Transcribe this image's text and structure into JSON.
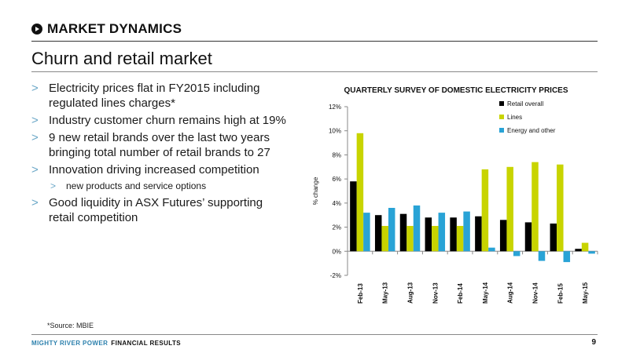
{
  "header": {
    "section": "MARKET DYNAMICS",
    "icon": "play-circle-icon"
  },
  "page_title": "Churn and retail market",
  "bullets": [
    {
      "level": 1,
      "text": "Electricity prices flat in FY2015 including regulated lines charges*"
    },
    {
      "level": 1,
      "text": "Industry customer churn remains high at 19%"
    },
    {
      "level": 1,
      "text": "9 new retail brands over the last two years bringing total number of retail brands to 27"
    },
    {
      "level": 1,
      "text": "Innovation driving increased competition"
    },
    {
      "level": 2,
      "text": "new products and service options"
    },
    {
      "level": 1,
      "text": "Good liquidity in ASX Futures’ supporting retail competition"
    }
  ],
  "bullet_marker": ">",
  "footnote": "*Source: MBIE",
  "footer": {
    "brand": "MIGHTY RIVER POWER",
    "subtitle": "FINANCIAL RESULTS",
    "page_number": "9"
  },
  "chart_data": {
    "type": "bar",
    "title": "QUARTERLY SURVEY OF DOMESTIC ELECTRICITY PRICES",
    "ylabel": "% change",
    "xlabel": "",
    "categories": [
      "Feb-13",
      "May-13",
      "Aug-13",
      "Nov-13",
      "Feb-14",
      "May-14",
      "Aug-14",
      "Nov-14",
      "Feb-15",
      "May-15"
    ],
    "ylim": [
      -2,
      12
    ],
    "yticks": [
      -2,
      0,
      2,
      4,
      6,
      8,
      10,
      12
    ],
    "ytick_labels": [
      "-2%",
      "0%",
      "2%",
      "4%",
      "6%",
      "8%",
      "10%",
      "12%"
    ],
    "legend_position": "top-right",
    "grid": false,
    "series": [
      {
        "name": "Retail overall",
        "color": "#000000",
        "values": [
          5.8,
          3.0,
          3.1,
          2.8,
          2.8,
          2.9,
          2.6,
          2.4,
          2.3,
          0.2
        ]
      },
      {
        "name": "Lines",
        "color": "#c8d400",
        "values": [
          9.8,
          2.1,
          2.1,
          2.1,
          2.1,
          6.8,
          7.0,
          7.4,
          7.2,
          0.7
        ]
      },
      {
        "name": "Energy and other",
        "color": "#29a3d6",
        "values": [
          3.2,
          3.6,
          3.8,
          3.2,
          3.3,
          0.3,
          -0.4,
          -0.8,
          -0.9,
          -0.2
        ]
      }
    ]
  }
}
